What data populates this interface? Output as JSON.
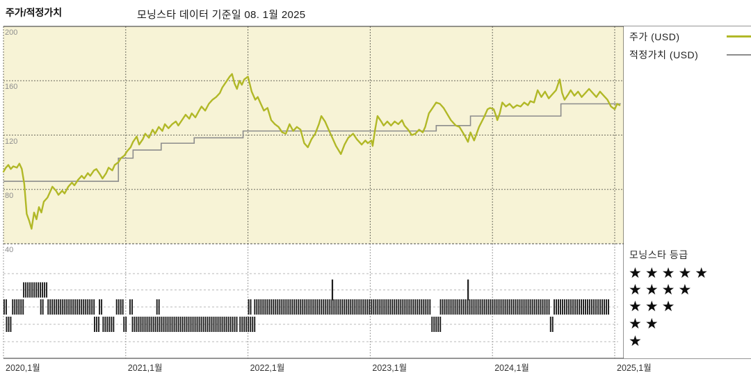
{
  "colors": {
    "plot_bg": "#f7f3d6",
    "price_line": "#b1b827",
    "fair_value_line": "#8c8c8c",
    "rating_ticks": "#1c1c1c",
    "grid_dark": "#6b6a5e",
    "grid_light": "#b8b8b8",
    "border": "#2b2b2b"
  },
  "header": {
    "title": "주가/적정가치",
    "as_of": "모닝스타 데이터 기준일 08. 1월 2025"
  },
  "legend": {
    "items": [
      {
        "label": "주가 (USD)",
        "color": "#b1b827"
      },
      {
        "label": "적정가치 (USD)",
        "color": "#8c8c8c"
      }
    ]
  },
  "rating_panel": {
    "title": "모닝스타 등급",
    "rows": [
      "★★★★★",
      "★★★★",
      "★★★",
      "★★",
      "★"
    ]
  },
  "chart_data": {
    "type": "line",
    "title": "주가/적정가치",
    "subtitle": "모닝스타 데이터 기준일 08. 1월 2025",
    "x_axis": {
      "tick_labels": [
        "2020,1월",
        "2021,1월",
        "2022,1월",
        "2023,1월",
        "2024,1월",
        "2025,1월"
      ],
      "tick_years": [
        2020,
        2021,
        2022,
        2023,
        2024,
        2025
      ],
      "range": [
        2020,
        2025.05
      ]
    },
    "y_axis": {
      "tick_labels": [
        "200",
        "160",
        "120",
        "80",
        "40"
      ],
      "ticks": [
        200,
        160,
        120,
        80,
        40
      ],
      "gridlines": [
        160,
        120,
        80
      ],
      "range": [
        40,
        200
      ]
    },
    "series": [
      {
        "name": "주가 (USD)",
        "type": "line",
        "color": "#b1b827",
        "points": [
          [
            2020.0,
            93
          ],
          [
            2020.02,
            96
          ],
          [
            2020.04,
            98
          ],
          [
            2020.06,
            95
          ],
          [
            2020.08,
            97
          ],
          [
            2020.11,
            96
          ],
          [
            2020.13,
            99
          ],
          [
            2020.15,
            95
          ],
          [
            2020.17,
            84
          ],
          [
            2020.19,
            62
          ],
          [
            2020.21,
            57
          ],
          [
            2020.23,
            51
          ],
          [
            2020.25,
            63
          ],
          [
            2020.27,
            58
          ],
          [
            2020.29,
            67
          ],
          [
            2020.31,
            63
          ],
          [
            2020.33,
            71
          ],
          [
            2020.36,
            74
          ],
          [
            2020.38,
            78
          ],
          [
            2020.4,
            82
          ],
          [
            2020.43,
            79
          ],
          [
            2020.45,
            76
          ],
          [
            2020.48,
            79
          ],
          [
            2020.5,
            77
          ],
          [
            2020.53,
            82
          ],
          [
            2020.56,
            85
          ],
          [
            2020.58,
            83
          ],
          [
            2020.61,
            87
          ],
          [
            2020.64,
            90
          ],
          [
            2020.66,
            88
          ],
          [
            2020.69,
            92
          ],
          [
            2020.71,
            90
          ],
          [
            2020.74,
            94
          ],
          [
            2020.76,
            95
          ],
          [
            2020.79,
            91
          ],
          [
            2020.81,
            88
          ],
          [
            2020.84,
            92
          ],
          [
            2020.86,
            96
          ],
          [
            2020.89,
            94
          ],
          [
            2020.91,
            98
          ],
          [
            2020.94,
            100
          ],
          [
            2020.96,
            103
          ],
          [
            2020.99,
            105
          ],
          [
            2021.01,
            108
          ],
          [
            2021.04,
            111
          ],
          [
            2021.06,
            115
          ],
          [
            2021.09,
            119
          ],
          [
            2021.11,
            113
          ],
          [
            2021.14,
            117
          ],
          [
            2021.16,
            121
          ],
          [
            2021.19,
            118
          ],
          [
            2021.22,
            124
          ],
          [
            2021.24,
            121
          ],
          [
            2021.27,
            126
          ],
          [
            2021.3,
            123
          ],
          [
            2021.32,
            128
          ],
          [
            2021.35,
            125
          ],
          [
            2021.38,
            128
          ],
          [
            2021.41,
            130
          ],
          [
            2021.43,
            127
          ],
          [
            2021.46,
            131
          ],
          [
            2021.49,
            135
          ],
          [
            2021.52,
            132
          ],
          [
            2021.54,
            136
          ],
          [
            2021.57,
            133
          ],
          [
            2021.6,
            138
          ],
          [
            2021.62,
            141
          ],
          [
            2021.65,
            138
          ],
          [
            2021.68,
            143
          ],
          [
            2021.71,
            146
          ],
          [
            2021.74,
            148
          ],
          [
            2021.77,
            151
          ],
          [
            2021.79,
            155
          ],
          [
            2021.82,
            159
          ],
          [
            2021.85,
            163
          ],
          [
            2021.87,
            165
          ],
          [
            2021.89,
            158
          ],
          [
            2021.91,
            154
          ],
          [
            2021.93,
            160
          ],
          [
            2021.95,
            157
          ],
          [
            2021.97,
            161
          ],
          [
            2022.0,
            163
          ],
          [
            2022.03,
            152
          ],
          [
            2022.06,
            146
          ],
          [
            2022.08,
            148
          ],
          [
            2022.1,
            144
          ],
          [
            2022.13,
            138
          ],
          [
            2022.16,
            140
          ],
          [
            2022.19,
            131
          ],
          [
            2022.22,
            128
          ],
          [
            2022.25,
            126
          ],
          [
            2022.28,
            122
          ],
          [
            2022.31,
            121
          ],
          [
            2022.34,
            128
          ],
          [
            2022.37,
            123
          ],
          [
            2022.4,
            126
          ],
          [
            2022.43,
            124
          ],
          [
            2022.46,
            114
          ],
          [
            2022.49,
            111
          ],
          [
            2022.52,
            117
          ],
          [
            2022.55,
            121
          ],
          [
            2022.58,
            128
          ],
          [
            2022.6,
            134
          ],
          [
            2022.63,
            130
          ],
          [
            2022.66,
            124
          ],
          [
            2022.69,
            118
          ],
          [
            2022.72,
            112
          ],
          [
            2022.74,
            109
          ],
          [
            2022.76,
            106
          ],
          [
            2022.79,
            113
          ],
          [
            2022.82,
            118
          ],
          [
            2022.86,
            121
          ],
          [
            2022.89,
            117
          ],
          [
            2022.93,
            113
          ],
          [
            2022.96,
            116
          ],
          [
            2022.98,
            114
          ],
          [
            2023.01,
            116
          ],
          [
            2023.02,
            112
          ],
          [
            2023.04,
            124
          ],
          [
            2023.06,
            134
          ],
          [
            2023.09,
            130
          ],
          [
            2023.11,
            127
          ],
          [
            2023.14,
            130
          ],
          [
            2023.17,
            127
          ],
          [
            2023.2,
            130
          ],
          [
            2023.23,
            128
          ],
          [
            2023.26,
            131
          ],
          [
            2023.28,
            127
          ],
          [
            2023.31,
            124
          ],
          [
            2023.34,
            120
          ],
          [
            2023.37,
            121
          ],
          [
            2023.4,
            124
          ],
          [
            2023.43,
            122
          ],
          [
            2023.45,
            126
          ],
          [
            2023.48,
            136
          ],
          [
            2023.51,
            140
          ],
          [
            2023.54,
            144
          ],
          [
            2023.57,
            143
          ],
          [
            2023.6,
            140
          ],
          [
            2023.62,
            137
          ],
          [
            2023.66,
            131
          ],
          [
            2023.7,
            127
          ],
          [
            2023.73,
            126
          ],
          [
            2023.77,
            120
          ],
          [
            2023.8,
            115
          ],
          [
            2023.82,
            122
          ],
          [
            2023.85,
            116
          ],
          [
            2023.89,
            126
          ],
          [
            2023.93,
            133
          ],
          [
            2023.96,
            139
          ],
          [
            2023.98,
            140
          ],
          [
            2024.01,
            139
          ],
          [
            2024.03,
            134
          ],
          [
            2024.04,
            131
          ],
          [
            2024.06,
            136
          ],
          [
            2024.08,
            144
          ],
          [
            2024.11,
            141
          ],
          [
            2024.14,
            143
          ],
          [
            2024.17,
            140
          ],
          [
            2024.2,
            142
          ],
          [
            2024.23,
            141
          ],
          [
            2024.26,
            144
          ],
          [
            2024.29,
            142
          ],
          [
            2024.31,
            145
          ],
          [
            2024.34,
            144
          ],
          [
            2024.37,
            153
          ],
          [
            2024.4,
            148
          ],
          [
            2024.43,
            152
          ],
          [
            2024.46,
            147
          ],
          [
            2024.49,
            150
          ],
          [
            2024.52,
            153
          ],
          [
            2024.55,
            161
          ],
          [
            2024.57,
            151
          ],
          [
            2024.59,
            146
          ],
          [
            2024.62,
            150
          ],
          [
            2024.64,
            153
          ],
          [
            2024.67,
            149
          ],
          [
            2024.7,
            152
          ],
          [
            2024.73,
            148
          ],
          [
            2024.76,
            151
          ],
          [
            2024.79,
            154
          ],
          [
            2024.82,
            151
          ],
          [
            2024.85,
            148
          ],
          [
            2024.88,
            152
          ],
          [
            2024.91,
            149
          ],
          [
            2024.94,
            146
          ],
          [
            2024.97,
            141
          ],
          [
            2025.0,
            139
          ],
          [
            2025.02,
            143
          ],
          [
            2025.04,
            142
          ]
        ]
      },
      {
        "name": "적정가치 (USD)",
        "type": "step",
        "color": "#8c8c8c",
        "steps": [
          [
            2020.0,
            86
          ],
          [
            2020.94,
            103
          ],
          [
            2021.06,
            109
          ],
          [
            2021.29,
            114
          ],
          [
            2021.56,
            118
          ],
          [
            2021.96,
            123
          ],
          [
            2023.54,
            127
          ],
          [
            2023.82,
            134
          ],
          [
            2024.56,
            143
          ]
        ],
        "end_x": 2025.05
      }
    ],
    "rating_timeline": {
      "row_labels": [
        5,
        4,
        3,
        2,
        1
      ],
      "segments": [
        {
          "stars": 3,
          "from": 2020.0,
          "to": 2020.03
        },
        {
          "stars": 2,
          "from": 2020.02,
          "to": 2020.07
        },
        {
          "stars": 3,
          "from": 2020.07,
          "to": 2020.16
        },
        {
          "stars": 4,
          "from": 2020.16,
          "to": 2020.36
        },
        {
          "stars": 3,
          "from": 2020.3,
          "to": 2020.32
        },
        {
          "stars": 3,
          "from": 2020.36,
          "to": 2020.74
        },
        {
          "stars": 2,
          "from": 2020.74,
          "to": 2020.78
        },
        {
          "stars": 3,
          "from": 2020.78,
          "to": 2020.81
        },
        {
          "stars": 2,
          "from": 2020.81,
          "to": 2020.9
        },
        {
          "stars": 3,
          "from": 2020.92,
          "to": 2020.98
        },
        {
          "stars": 2,
          "from": 2020.98,
          "to": 2021.01
        },
        {
          "stars": 3,
          "from": 2021.03,
          "to": 2021.05
        },
        {
          "stars": 2,
          "from": 2021.05,
          "to": 2021.92
        },
        {
          "stars": 3,
          "from": 2021.25,
          "to": 2021.27
        },
        {
          "stars": 2,
          "from": 2021.93,
          "to": 2022.05
        },
        {
          "stars": 3,
          "from": 2022.0,
          "to": 2022.02
        },
        {
          "stars": 3,
          "from": 2022.05,
          "to": 2023.5
        },
        {
          "stars": 2,
          "from": 2023.5,
          "to": 2023.57
        },
        {
          "stars": 3,
          "from": 2023.57,
          "to": 2024.47
        },
        {
          "stars": 2,
          "from": 2024.47,
          "to": 2024.5
        },
        {
          "stars": 3,
          "from": 2024.5,
          "to": 2024.95
        }
      ],
      "spikes": [
        {
          "stars": 4,
          "at": 2022.69
        },
        {
          "stars": 4,
          "at": 2023.8
        }
      ]
    }
  }
}
